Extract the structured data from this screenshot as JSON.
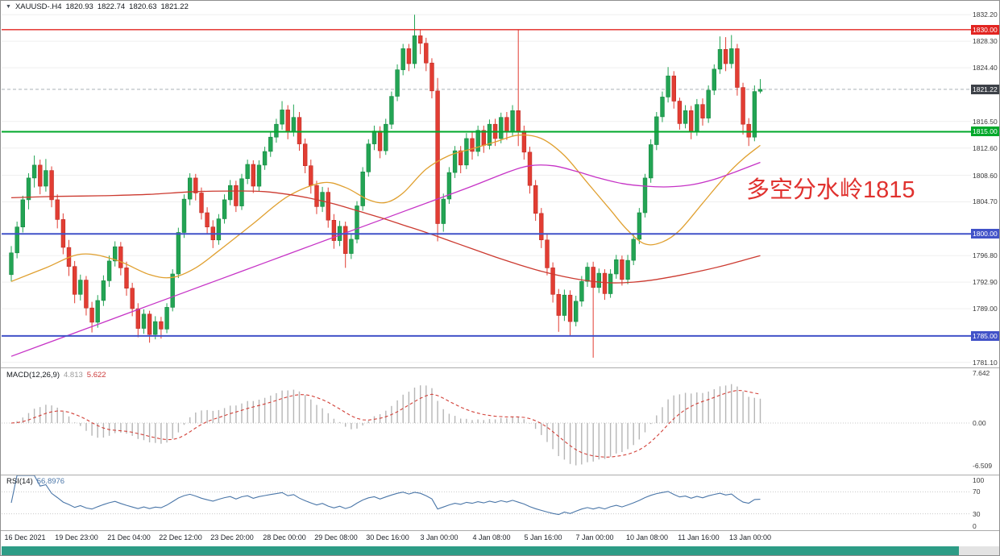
{
  "window": {
    "title_symbol": "XAUUSD-.H4",
    "ohlc": {
      "open": "1820.93",
      "high": "1822.74",
      "low": "1820.63",
      "close": "1821.22"
    }
  },
  "icons": {
    "symbol_dropdown": "▼"
  },
  "annotation": {
    "text": "多空分水岭1815",
    "color": "#e0312e"
  },
  "scrollbar": {
    "color": "#2d9c86"
  },
  "chart_data": {
    "type": "candlestick",
    "symbol": "XAUUSD-",
    "timeframe": "H4",
    "x_labels": [
      "16 Dec 2021",
      "19 Dec 23:00",
      "21 Dec 04:00",
      "22 Dec 12:00",
      "23 Dec 20:00",
      "28 Dec 00:00",
      "29 Dec 08:00",
      "30 Dec 16:00",
      "3 Jan 00:00",
      "4 Jan 08:00",
      "5 Jan 16:00",
      "7 Jan 00:00",
      "10 Jan 08:00",
      "11 Jan 16:00",
      "13 Jan 00:00"
    ],
    "y_axis": {
      "ticks": [
        {
          "label": "1832.20",
          "price": 1832.2
        },
        {
          "label": "1828.30",
          "price": 1828.3
        },
        {
          "label": "1824.40",
          "price": 1824.4
        },
        {
          "label": "1816.50",
          "price": 1816.5
        },
        {
          "label": "1812.60",
          "price": 1812.6
        },
        {
          "label": "1808.60",
          "price": 1808.6
        },
        {
          "label": "1804.70",
          "price": 1804.7
        },
        {
          "label": "1796.80",
          "price": 1796.8
        },
        {
          "label": "1792.90",
          "price": 1792.9
        },
        {
          "label": "1789.00",
          "price": 1789.0
        },
        {
          "label": "1781.10",
          "price": 1781.1
        }
      ]
    },
    "h_lines": [
      {
        "label": "1830.00",
        "price": 1830.0,
        "color": "#e22420",
        "width": 1.4
      },
      {
        "label": "1815.00",
        "price": 1815.0,
        "color": "#00a82a",
        "width": 2
      },
      {
        "label": "1800.00",
        "price": 1800.0,
        "color": "#4152c8",
        "width": 2
      },
      {
        "label": "1785.00",
        "price": 1785.0,
        "color": "#4152c8",
        "width": 2
      }
    ],
    "current_price": {
      "value": 1821.22,
      "label": "1821.22",
      "badge_color": "#3d4148"
    },
    "colors": {
      "up": "#23a454",
      "up_border": "#168a43",
      "down": "#e23d33",
      "down_border": "#bf2d25"
    },
    "candles": [
      [
        1794.0,
        1798.2,
        1793.0,
        1797.2
      ],
      [
        1797.2,
        1801.8,
        1796.4,
        1801.0
      ],
      [
        1801.0,
        1805.6,
        1800.2,
        1805.0
      ],
      [
        1805.0,
        1808.9,
        1803.6,
        1808.2
      ],
      [
        1808.2,
        1811.5,
        1806.8,
        1810.1
      ],
      [
        1810.1,
        1810.9,
        1805.8,
        1807.0
      ],
      [
        1807.0,
        1811.0,
        1806.2,
        1809.3
      ],
      [
        1809.3,
        1809.9,
        1803.9,
        1805.0
      ],
      [
        1805.0,
        1805.8,
        1800.8,
        1802.1
      ],
      [
        1802.1,
        1803.0,
        1797.0,
        1798.0
      ],
      [
        1798.0,
        1799.1,
        1793.8,
        1795.2
      ],
      [
        1795.2,
        1796.0,
        1789.8,
        1791.1
      ],
      [
        1791.1,
        1794.0,
        1790.2,
        1793.2
      ],
      [
        1793.2,
        1793.8,
        1788.0,
        1789.1
      ],
      [
        1789.1,
        1790.0,
        1785.5,
        1787.0
      ],
      [
        1787.0,
        1791.0,
        1786.2,
        1790.2
      ],
      [
        1790.2,
        1793.9,
        1789.4,
        1793.1
      ],
      [
        1793.1,
        1796.8,
        1792.2,
        1796.0
      ],
      [
        1796.0,
        1798.9,
        1795.2,
        1798.1
      ],
      [
        1798.1,
        1798.8,
        1793.9,
        1795.0
      ],
      [
        1795.0,
        1795.9,
        1790.9,
        1792.0
      ],
      [
        1792.0,
        1792.8,
        1787.9,
        1789.0
      ],
      [
        1789.0,
        1789.8,
        1784.8,
        1786.1
      ],
      [
        1786.1,
        1788.9,
        1785.3,
        1788.2
      ],
      [
        1788.2,
        1788.7,
        1784.0,
        1785.2
      ],
      [
        1785.2,
        1787.9,
        1784.5,
        1787.1
      ],
      [
        1787.1,
        1787.8,
        1784.6,
        1786.0
      ],
      [
        1786.0,
        1789.8,
        1785.4,
        1789.2
      ],
      [
        1789.2,
        1794.8,
        1788.6,
        1794.1
      ],
      [
        1794.1,
        1800.9,
        1793.5,
        1800.2
      ],
      [
        1800.2,
        1805.8,
        1799.4,
        1805.1
      ],
      [
        1805.1,
        1808.9,
        1804.2,
        1808.2
      ],
      [
        1808.2,
        1808.8,
        1804.9,
        1806.0
      ],
      [
        1806.0,
        1806.8,
        1802.1,
        1803.1
      ],
      [
        1803.1,
        1803.9,
        1799.9,
        1801.0
      ],
      [
        1801.0,
        1802.0,
        1797.9,
        1799.1
      ],
      [
        1799.1,
        1802.9,
        1798.4,
        1802.2
      ],
      [
        1802.2,
        1805.8,
        1801.5,
        1805.0
      ],
      [
        1805.0,
        1807.9,
        1804.2,
        1807.1
      ],
      [
        1807.1,
        1807.8,
        1803.2,
        1804.1
      ],
      [
        1804.1,
        1808.8,
        1803.5,
        1808.1
      ],
      [
        1808.1,
        1810.9,
        1807.3,
        1810.2
      ],
      [
        1810.2,
        1810.8,
        1806.0,
        1807.0
      ],
      [
        1807.0,
        1810.8,
        1806.3,
        1810.1
      ],
      [
        1810.1,
        1812.8,
        1809.4,
        1812.1
      ],
      [
        1812.1,
        1814.9,
        1811.3,
        1814.2
      ],
      [
        1814.2,
        1816.9,
        1813.4,
        1816.1
      ],
      [
        1816.1,
        1819.5,
        1815.3,
        1818.2
      ],
      [
        1818.2,
        1818.9,
        1813.9,
        1815.0
      ],
      [
        1815.0,
        1819.0,
        1814.3,
        1817.1
      ],
      [
        1817.1,
        1817.9,
        1812.2,
        1813.2
      ],
      [
        1813.2,
        1814.0,
        1808.9,
        1810.0
      ],
      [
        1810.0,
        1810.9,
        1805.9,
        1807.1
      ],
      [
        1807.1,
        1807.8,
        1802.9,
        1804.0
      ],
      [
        1804.0,
        1806.9,
        1803.2,
        1806.1
      ],
      [
        1806.1,
        1806.8,
        1800.9,
        1802.0
      ],
      [
        1802.0,
        1802.9,
        1797.8,
        1799.0
      ],
      [
        1799.0,
        1801.9,
        1798.2,
        1801.1
      ],
      [
        1801.1,
        1801.8,
        1795.0,
        1797.1
      ],
      [
        1797.1,
        1799.9,
        1796.3,
        1799.2
      ],
      [
        1799.2,
        1804.8,
        1798.6,
        1804.1
      ],
      [
        1804.1,
        1809.8,
        1803.4,
        1809.1
      ],
      [
        1809.1,
        1813.9,
        1808.4,
        1813.2
      ],
      [
        1813.2,
        1815.9,
        1812.3,
        1815.1
      ],
      [
        1815.1,
        1815.8,
        1811.1,
        1812.2
      ],
      [
        1812.2,
        1816.9,
        1811.6,
        1816.1
      ],
      [
        1816.1,
        1820.9,
        1815.4,
        1820.2
      ],
      [
        1820.2,
        1824.9,
        1819.5,
        1824.1
      ],
      [
        1824.1,
        1827.9,
        1823.3,
        1827.2
      ],
      [
        1827.2,
        1827.9,
        1823.9,
        1825.0
      ],
      [
        1825.0,
        1832.2,
        1824.3,
        1829.1
      ],
      [
        1829.1,
        1830.0,
        1826.4,
        1828.0
      ],
      [
        1828.0,
        1828.8,
        1823.9,
        1825.1
      ],
      [
        1825.1,
        1825.8,
        1819.9,
        1821.0
      ],
      [
        1821.0,
        1822.9,
        1798.9,
        1801.5
      ],
      [
        1801.5,
        1805.9,
        1800.3,
        1805.1
      ],
      [
        1805.1,
        1809.8,
        1804.4,
        1809.0
      ],
      [
        1809.0,
        1812.9,
        1808.2,
        1812.2
      ],
      [
        1812.2,
        1812.9,
        1808.9,
        1810.1
      ],
      [
        1810.1,
        1814.8,
        1809.5,
        1814.0
      ],
      [
        1814.0,
        1814.9,
        1810.9,
        1812.1
      ],
      [
        1812.1,
        1815.9,
        1811.4,
        1815.2
      ],
      [
        1815.2,
        1815.9,
        1811.9,
        1813.0
      ],
      [
        1813.0,
        1816.8,
        1812.4,
        1816.1
      ],
      [
        1816.1,
        1816.9,
        1812.9,
        1814.0
      ],
      [
        1814.0,
        1817.8,
        1813.3,
        1817.1
      ],
      [
        1817.1,
        1817.9,
        1813.8,
        1815.0
      ],
      [
        1815.0,
        1818.9,
        1814.3,
        1818.1
      ],
      [
        1818.1,
        1830.0,
        1812.9,
        1815.1
      ],
      [
        1815.1,
        1815.9,
        1810.9,
        1812.0
      ],
      [
        1812.0,
        1812.8,
        1805.9,
        1807.1
      ],
      [
        1807.1,
        1807.9,
        1801.9,
        1803.0
      ],
      [
        1803.0,
        1803.8,
        1797.9,
        1799.1
      ],
      [
        1799.1,
        1799.9,
        1793.9,
        1795.0
      ],
      [
        1795.0,
        1795.8,
        1789.9,
        1791.1
      ],
      [
        1791.1,
        1791.9,
        1785.6,
        1788.0
      ],
      [
        1788.0,
        1791.8,
        1787.2,
        1791.0
      ],
      [
        1791.0,
        1791.7,
        1785.0,
        1787.1
      ],
      [
        1787.1,
        1790.9,
        1786.4,
        1790.1
      ],
      [
        1790.1,
        1793.8,
        1789.3,
        1793.0
      ],
      [
        1793.0,
        1795.8,
        1792.2,
        1795.1
      ],
      [
        1795.1,
        1795.9,
        1781.8,
        1792.1
      ],
      [
        1792.1,
        1794.9,
        1791.3,
        1794.2
      ],
      [
        1794.2,
        1794.8,
        1790.3,
        1791.2
      ],
      [
        1791.2,
        1794.8,
        1790.6,
        1794.1
      ],
      [
        1794.1,
        1796.9,
        1793.4,
        1796.2
      ],
      [
        1796.2,
        1796.8,
        1792.4,
        1793.3
      ],
      [
        1793.3,
        1796.9,
        1792.6,
        1796.1
      ],
      [
        1796.1,
        1799.9,
        1795.4,
        1799.2
      ],
      [
        1799.2,
        1803.8,
        1798.5,
        1803.1
      ],
      [
        1803.1,
        1808.8,
        1802.4,
        1808.2
      ],
      [
        1808.2,
        1813.9,
        1807.5,
        1813.1
      ],
      [
        1813.1,
        1817.9,
        1812.3,
        1817.2
      ],
      [
        1817.2,
        1820.9,
        1816.4,
        1820.1
      ],
      [
        1820.1,
        1824.5,
        1819.3,
        1823.2
      ],
      [
        1823.2,
        1823.9,
        1818.4,
        1819.5
      ],
      [
        1819.5,
        1820.0,
        1815.3,
        1816.2
      ],
      [
        1816.2,
        1818.9,
        1815.5,
        1818.1
      ],
      [
        1818.1,
        1818.8,
        1813.9,
        1815.1
      ],
      [
        1815.1,
        1819.8,
        1814.4,
        1819.0
      ],
      [
        1819.0,
        1819.9,
        1815.9,
        1817.0
      ],
      [
        1817.0,
        1821.8,
        1816.3,
        1821.1
      ],
      [
        1821.1,
        1824.9,
        1820.4,
        1824.2
      ],
      [
        1824.2,
        1829.0,
        1823.5,
        1827.1
      ],
      [
        1827.1,
        1828.9,
        1823.9,
        1825.0
      ],
      [
        1825.0,
        1829.2,
        1824.3,
        1827.2
      ],
      [
        1827.2,
        1827.9,
        1820.3,
        1821.5
      ],
      [
        1821.5,
        1822.2,
        1814.6,
        1816.1
      ],
      [
        1816.1,
        1817.0,
        1812.9,
        1814.2
      ],
      [
        1814.2,
        1821.8,
        1813.6,
        1820.9
      ],
      [
        1820.93,
        1822.74,
        1820.63,
        1821.22
      ]
    ],
    "moving_averages": [
      {
        "name": "ma-fast-line",
        "color": "#e0a030",
        "points": [
          [
            0,
            1793.0
          ],
          [
            6,
            1795.0
          ],
          [
            12,
            1797.0
          ],
          [
            18,
            1796.2
          ],
          [
            24,
            1794.0
          ],
          [
            28,
            1793.6
          ],
          [
            32,
            1795.0
          ],
          [
            36,
            1797.5
          ],
          [
            42,
            1801.5
          ],
          [
            48,
            1805.5
          ],
          [
            54,
            1807.5
          ],
          [
            58,
            1806.8
          ],
          [
            62,
            1805.0
          ],
          [
            65,
            1804.6
          ],
          [
            68,
            1806.0
          ],
          [
            72,
            1809.5
          ],
          [
            76,
            1811.5
          ],
          [
            80,
            1812.5
          ],
          [
            84,
            1813.5
          ],
          [
            88,
            1814.5
          ],
          [
            92,
            1814.0
          ],
          [
            96,
            1811.5
          ],
          [
            100,
            1807.5
          ],
          [
            104,
            1803.5
          ],
          [
            107,
            1800.5
          ],
          [
            110,
            1798.5
          ],
          [
            113,
            1798.8
          ],
          [
            116,
            1800.5
          ],
          [
            120,
            1804.5
          ],
          [
            124,
            1808.5
          ],
          [
            127,
            1811.0
          ],
          [
            130,
            1813.0
          ]
        ]
      },
      {
        "name": "ma-mid-line",
        "color": "#c633c6",
        "points": [
          [
            0,
            1782.0
          ],
          [
            8,
            1784.5
          ],
          [
            16,
            1787.0
          ],
          [
            24,
            1789.5
          ],
          [
            32,
            1792.0
          ],
          [
            40,
            1794.5
          ],
          [
            48,
            1797.0
          ],
          [
            56,
            1799.5
          ],
          [
            64,
            1802.0
          ],
          [
            72,
            1804.5
          ],
          [
            80,
            1807.0
          ],
          [
            86,
            1809.0
          ],
          [
            90,
            1810.0
          ],
          [
            94,
            1810.0
          ],
          [
            98,
            1809.2
          ],
          [
            102,
            1808.2
          ],
          [
            106,
            1807.4
          ],
          [
            110,
            1807.0
          ],
          [
            114,
            1806.9
          ],
          [
            118,
            1807.2
          ],
          [
            122,
            1808.0
          ],
          [
            126,
            1809.2
          ],
          [
            130,
            1810.5
          ]
        ]
      },
      {
        "name": "ma-slow-line",
        "color": "#cc3a30",
        "points": [
          [
            0,
            1805.3
          ],
          [
            8,
            1805.5
          ],
          [
            16,
            1805.6
          ],
          [
            24,
            1805.8
          ],
          [
            32,
            1806.2
          ],
          [
            40,
            1806.3
          ],
          [
            44,
            1806.2
          ],
          [
            48,
            1805.8
          ],
          [
            52,
            1805.2
          ],
          [
            56,
            1804.4
          ],
          [
            60,
            1803.4
          ],
          [
            64,
            1802.4
          ],
          [
            68,
            1801.3
          ],
          [
            72,
            1800.2
          ],
          [
            76,
            1799.0
          ],
          [
            80,
            1797.8
          ],
          [
            84,
            1796.6
          ],
          [
            88,
            1795.5
          ],
          [
            92,
            1794.5
          ],
          [
            96,
            1793.7
          ],
          [
            100,
            1793.1
          ],
          [
            104,
            1792.8
          ],
          [
            108,
            1792.9
          ],
          [
            112,
            1793.3
          ],
          [
            116,
            1793.9
          ],
          [
            120,
            1794.6
          ],
          [
            124,
            1795.4
          ],
          [
            127,
            1796.1
          ],
          [
            130,
            1796.8
          ]
        ]
      }
    ],
    "macd": {
      "label": "MACD(12,26,9)",
      "main_value": "4.813",
      "signal_value": "5.622",
      "fast": 12,
      "slow": 26,
      "signal": 9,
      "ticks": [
        "7.642",
        "0.00",
        "-6.509"
      ],
      "tick_values": [
        7.642,
        0,
        -6.509
      ],
      "hist_color": "#b6b6b6",
      "signal_color": "#d24038"
    },
    "rsi": {
      "label": "RSI(14)",
      "value": "56.8976",
      "period": 14,
      "levels": [
        70,
        30
      ],
      "ticks": [
        "100",
        "70",
        "30",
        "0"
      ],
      "tick_values": [
        100,
        70,
        30,
        0
      ],
      "color": "#4a76a8"
    }
  }
}
